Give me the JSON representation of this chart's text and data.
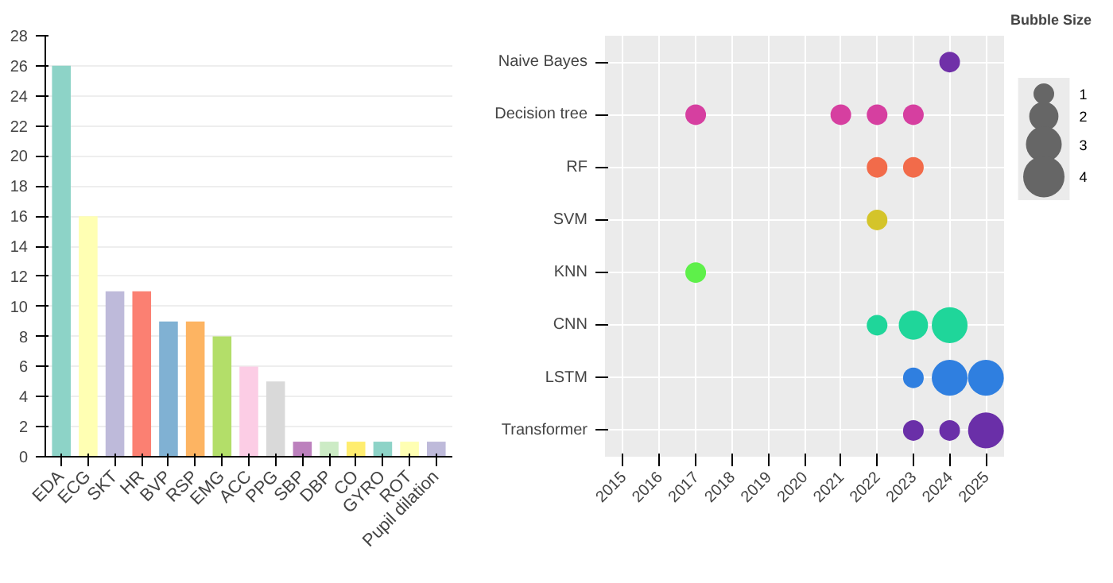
{
  "chart_data": [
    {
      "type": "bar",
      "categories": [
        "EDA",
        "ECG",
        "SKT",
        "HR",
        "BVP",
        "RSP",
        "EMG",
        "ACC",
        "PPG",
        "SBP",
        "DBP",
        "CO",
        "GYRO",
        "ROT",
        "Pupil dilation"
      ],
      "values": [
        26,
        16,
        11,
        11,
        9,
        9,
        8,
        6,
        5,
        1,
        1,
        1,
        1,
        1,
        1
      ],
      "colors": [
        "#8dd3c7",
        "#ffffb3",
        "#bebada",
        "#fb8072",
        "#80b1d3",
        "#fdb462",
        "#b3de69",
        "#fccde5",
        "#d9d9d9",
        "#bc80bd",
        "#ccebc5",
        "#ffed6f",
        "#8dd3c7",
        "#ffffb3",
        "#bebada"
      ],
      "ylim": [
        0,
        28
      ],
      "yticks": [
        0,
        2,
        4,
        6,
        8,
        10,
        12,
        14,
        16,
        18,
        20,
        22,
        24,
        26,
        28
      ],
      "grid": "y"
    },
    {
      "type": "bubble",
      "orientation": "horizontal",
      "legend_title": "Bubble Size",
      "size_legend": [
        1,
        2,
        3,
        4
      ],
      "categories": [
        "Naive Bayes",
        "Decision tree",
        "RF",
        "SVM",
        "KNN",
        "CNN",
        "LSTM",
        "Transformer"
      ],
      "xlim": [
        2014.5,
        2025.5
      ],
      "xticks": [
        2015,
        2016,
        2017,
        2018,
        2019,
        2020,
        2021,
        2022,
        2023,
        2024,
        2025
      ],
      "grid": true,
      "series": [
        {
          "values": [
            2024,
            2017,
            2022,
            2022,
            2017,
            2022,
            2023,
            2023
          ],
          "sizes": [
            1,
            1,
            1,
            1,
            1,
            1,
            1,
            1
          ],
          "colors": [
            "#7030a8",
            "#d63fa0",
            "#f26b4a",
            "#d4c42a",
            "#5ef04a",
            "#1fd69a",
            "#2f7fe0",
            "#6a2fa8"
          ]
        },
        {
          "values": [
            null,
            2021,
            2023,
            null,
            null,
            2023,
            2024,
            2024
          ],
          "sizes": [
            null,
            1,
            1,
            null,
            null,
            2,
            3,
            1
          ],
          "colors": [
            null,
            "#d63fa0",
            "#f26b4a",
            null,
            null,
            "#1fd69a",
            "#2f7fe0",
            "#6a2fa8"
          ]
        },
        {
          "values": [
            null,
            2022,
            null,
            null,
            null,
            2024,
            2025,
            2025
          ],
          "sizes": [
            null,
            1,
            null,
            null,
            null,
            3,
            3,
            3
          ],
          "colors": [
            null,
            "#d63fa0",
            null,
            null,
            null,
            "#1fd69a",
            "#2f7fe0",
            "#6a2fa8"
          ]
        },
        {
          "values": [
            null,
            2023,
            null,
            null,
            null,
            null,
            null,
            null
          ],
          "sizes": [
            null,
            1,
            null,
            null,
            null,
            null,
            null,
            null
          ],
          "colors": [
            null,
            "#d63fa0",
            null,
            null,
            null,
            null,
            null,
            null
          ]
        }
      ]
    }
  ]
}
